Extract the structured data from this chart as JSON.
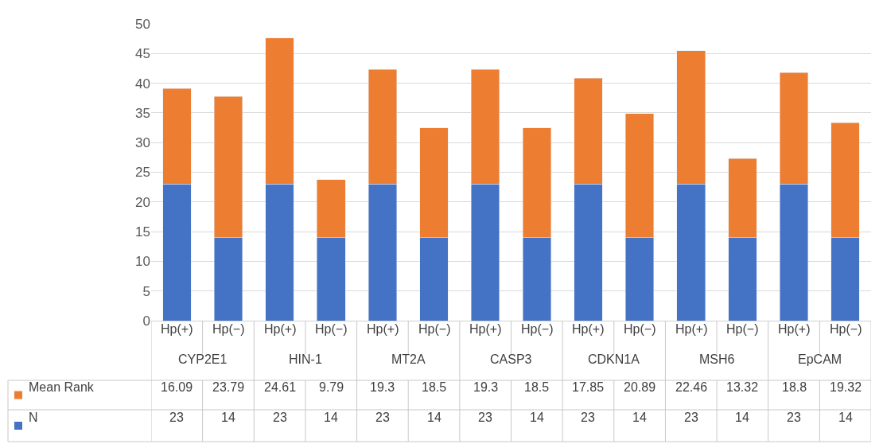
{
  "chart_data": {
    "type": "bar",
    "stacked": true,
    "categories": [
      "Hp(+)",
      "Hp(−)",
      "Hp(+)",
      "Hp(−)",
      "Hp(+)",
      "Hp(−)",
      "Hp(+)",
      "Hp(−)",
      "Hp(+)",
      "Hp(−)",
      "Hp(+)",
      "Hp(−)",
      "Hp(+)",
      "Hp(−)"
    ],
    "annotations": [
      "CYP2E1",
      "HIN-1",
      "MT2A",
      "CASP3",
      "CDKN1A",
      "MSH6",
      "EpCAM"
    ],
    "series": [
      {
        "name": "N",
        "color": "#4472c4",
        "values": [
          23,
          14,
          23,
          14,
          23,
          14,
          23,
          14,
          23,
          14,
          23,
          14,
          23,
          14
        ]
      },
      {
        "name": "Mean Rank",
        "color": "#ed7d31",
        "values": [
          16.09,
          23.79,
          24.61,
          9.79,
          19.3,
          18.5,
          19.3,
          18.5,
          17.85,
          20.89,
          22.46,
          13.32,
          18.8,
          19.32
        ]
      }
    ],
    "ylim": [
      0,
      50
    ],
    "yticks": [
      0,
      5,
      10,
      15,
      20,
      25,
      30,
      35,
      40,
      45,
      50
    ],
    "grid": "y",
    "legend": "bottom",
    "data_labels": true
  }
}
